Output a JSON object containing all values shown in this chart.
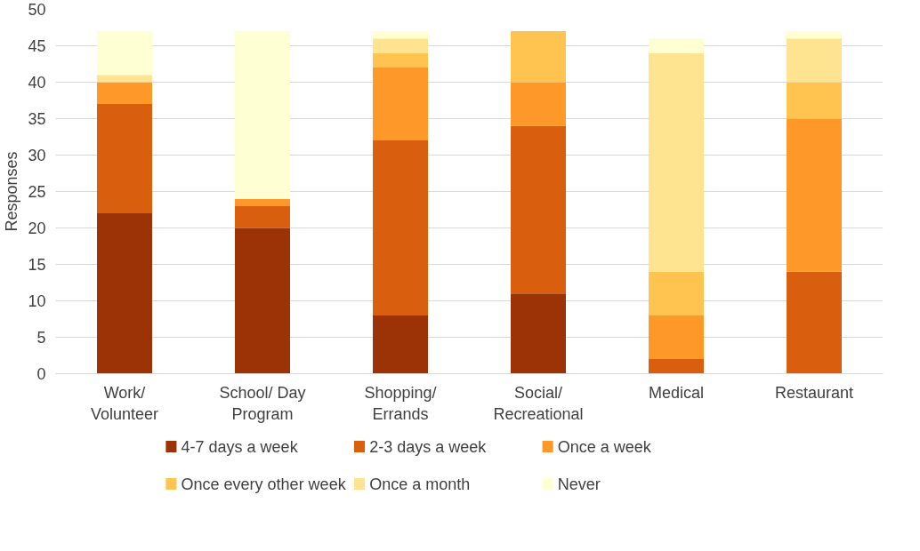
{
  "chart_data": {
    "type": "bar",
    "stacked": true,
    "ylabel": "Responses",
    "categories": [
      "Work/\nVolunteer",
      "School/ Day\nProgram",
      "Shopping/\nErrands",
      "Social/\nRecreational",
      "Medical",
      "Restaurant"
    ],
    "series": [
      {
        "name": "4-7 days a week",
        "color": "#9c3306",
        "values": [
          22,
          20,
          8,
          11,
          0,
          0
        ]
      },
      {
        "name": "2-3 days a week",
        "color": "#d95f0e",
        "values": [
          15,
          3,
          24,
          23,
          2,
          14
        ]
      },
      {
        "name": "Once a week",
        "color": "#fe9929",
        "values": [
          3,
          1,
          10,
          6,
          6,
          21
        ]
      },
      {
        "name": "Once every other week",
        "color": "#fec44f",
        "values": [
          0,
          0,
          2,
          7,
          6,
          5
        ]
      },
      {
        "name": "Once a month",
        "color": "#fee391",
        "values": [
          1,
          0,
          2,
          0,
          30,
          6
        ]
      },
      {
        "name": "Never",
        "color": "#ffffd4",
        "values": [
          6,
          23,
          1,
          0,
          2,
          1
        ]
      }
    ],
    "ylim": [
      0,
      50
    ],
    "yticks": [
      0,
      5,
      10,
      15,
      20,
      25,
      30,
      35,
      40,
      45,
      50
    ],
    "grid": "y",
    "legend": "bottom"
  }
}
